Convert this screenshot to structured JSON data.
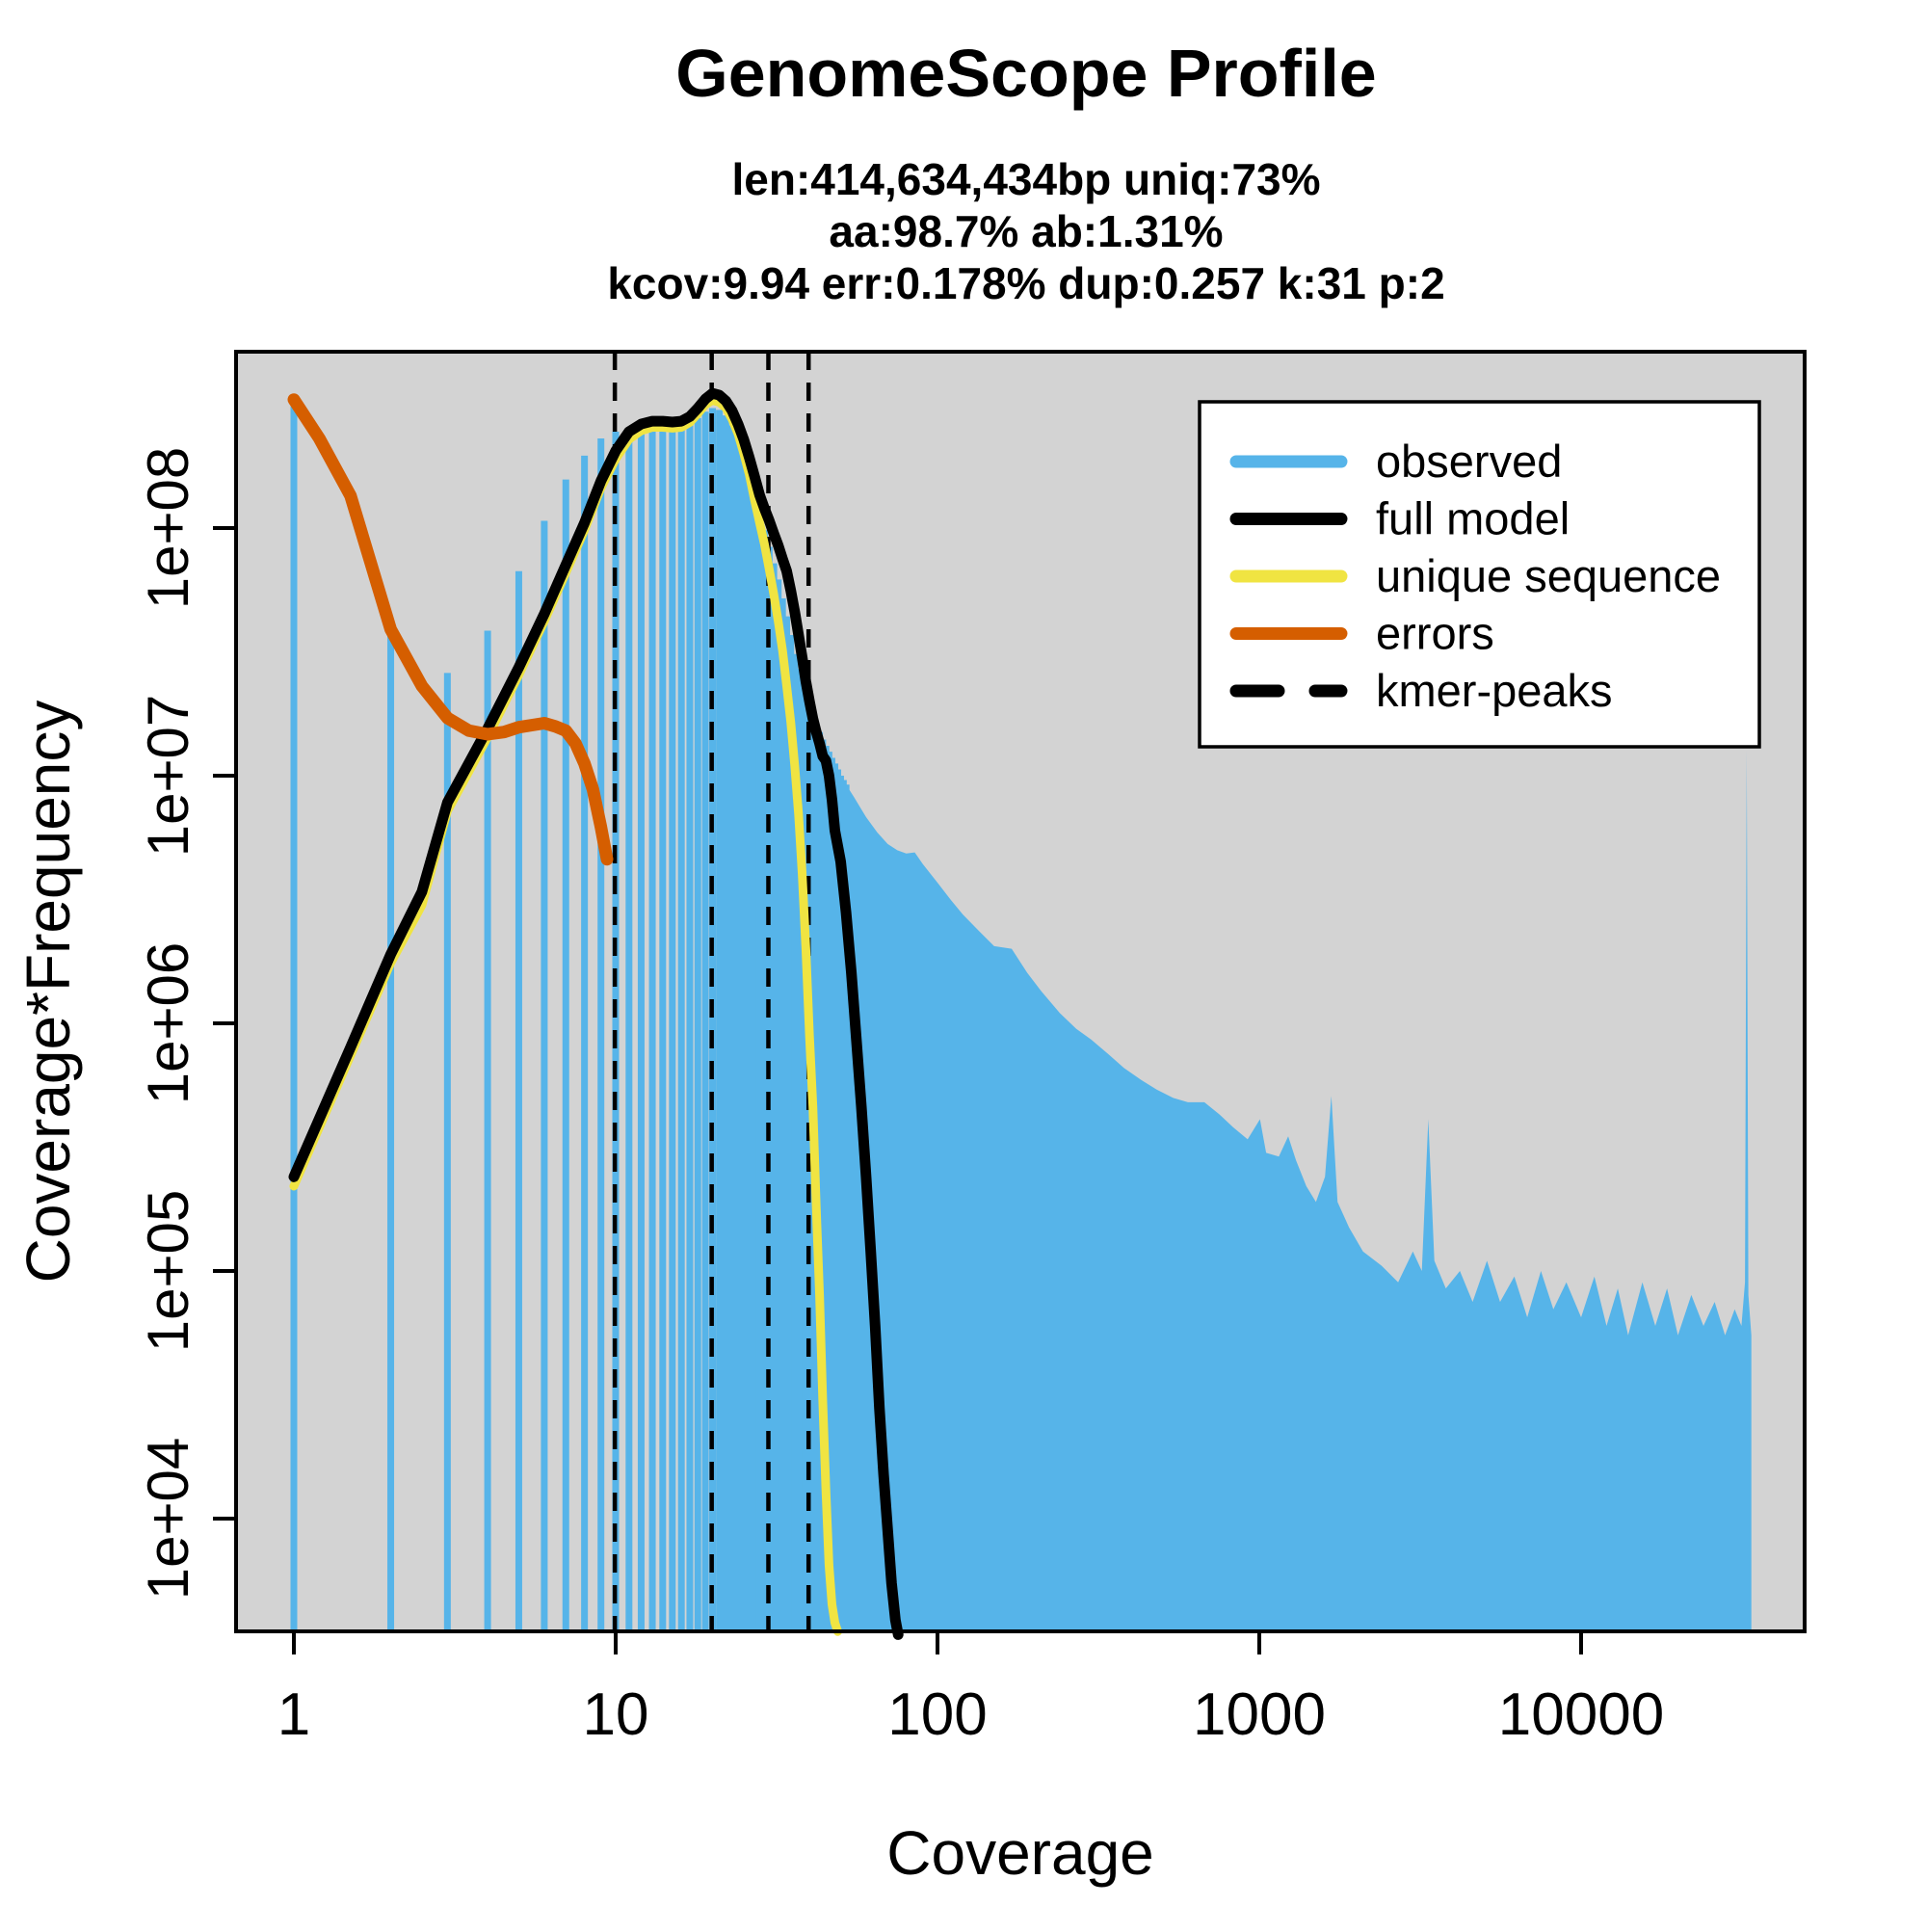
{
  "title": "GenomeScope Profile",
  "subtitle_lines": [
    "len:414,634,434bp uniq:73%",
    "aa:98.7% ab:1.31%",
    "kcov:9.94 err:0.178%  dup:0.257  k:31 p:2"
  ],
  "chart_data": {
    "type": "bar",
    "subtype": "kmer-spectrum-histogram-with-model-curves",
    "title": "GenomeScope Profile",
    "xlabel": "Coverage",
    "ylabel": "Coverage*Frequency",
    "x_scale": "log10",
    "y_scale": "log10",
    "x_ticks": [
      1,
      10,
      100,
      1000,
      10000
    ],
    "y_tick_labels": [
      "1e+04",
      "1e+05",
      "1e+06",
      "1e+07",
      "1e+08"
    ],
    "y_tick_values": [
      10000.0,
      100000.0,
      1000000.0,
      10000000.0,
      100000000.0
    ],
    "xlim": [
      0.66,
      49000
    ],
    "ylim": [
      3500,
      515000000
    ],
    "grid": false,
    "panel_bg": "#D3D3D3",
    "colors": {
      "observed": "#56B4E9",
      "full_model": "#000000",
      "unique_sequence": "#F0E442",
      "errors": "#D55E00",
      "kmer_peaks": "#000000"
    },
    "kmer_peaks": [
      9.94,
      19.88,
      29.82,
      39.76
    ],
    "legend": {
      "position": "top-right",
      "entries": [
        {
          "label": "observed",
          "color": "#56B4E9",
          "dashed": false
        },
        {
          "label": "full model",
          "color": "#000000",
          "dashed": false
        },
        {
          "label": "unique sequence",
          "color": "#F0E442",
          "dashed": false
        },
        {
          "label": "errors",
          "color": "#D55E00",
          "dashed": false
        },
        {
          "label": "kmer-peaks",
          "color": "#000000",
          "dashed": true
        }
      ]
    },
    "series": {
      "observed_bars": [
        [
          1,
          310000000.0
        ],
        [
          2,
          38500000.0
        ],
        [
          3,
          26000000.0
        ],
        [
          4,
          38500000.0
        ],
        [
          5,
          67000000.0
        ],
        [
          6,
          107000000.0
        ],
        [
          7,
          157000000.0
        ],
        [
          8,
          196000000.0
        ],
        [
          9,
          230000000.0
        ],
        [
          10,
          245000000.0
        ],
        [
          11,
          250000000.0
        ],
        [
          12,
          252000000.0
        ],
        [
          13,
          253000000.0
        ],
        [
          14,
          250000000.0
        ],
        [
          15,
          248000000.0
        ],
        [
          16,
          250000000.0
        ],
        [
          17,
          260000000.0
        ],
        [
          18,
          278000000.0
        ],
        [
          19,
          295000000.0
        ],
        [
          20,
          305000000.0
        ],
        [
          21,
          300000000.0
        ],
        [
          22,
          285000000.0
        ],
        [
          23,
          260000000.0
        ],
        [
          24,
          230000000.0
        ],
        [
          25,
          198000000.0
        ],
        [
          26,
          165000000.0
        ],
        [
          27,
          138000000.0
        ],
        [
          28,
          115000000.0
        ],
        [
          29,
          98000000.0
        ],
        [
          30,
          84000000.0
        ],
        [
          31,
          72000000.0
        ],
        [
          32,
          62000000.0
        ],
        [
          33,
          52000000.0
        ],
        [
          34,
          44000000.0
        ],
        [
          35,
          37000000.0
        ],
        [
          36,
          31000000.0
        ],
        [
          37,
          27000000.0
        ],
        [
          38,
          23500000.0
        ],
        [
          39,
          21000000.0
        ],
        [
          40,
          19000000.0
        ],
        [
          41,
          17500000.0
        ],
        [
          42,
          16200000.0
        ],
        [
          43,
          15000000.0
        ],
        [
          44,
          14000000.0
        ],
        [
          45,
          13200000.0
        ],
        [
          46,
          12500000.0
        ],
        [
          47,
          11800000.0
        ],
        [
          48,
          11200000.0
        ],
        [
          49,
          10600000.0
        ],
        [
          50,
          10000000.0
        ],
        [
          51,
          9600000.0
        ],
        [
          52,
          9200000.0
        ]
      ],
      "observed_tail": [
        [
          52,
          9200000.0
        ],
        [
          55,
          8200000.0
        ],
        [
          60,
          6800000.0
        ],
        [
          65,
          5900000.0
        ],
        [
          70,
          5300000.0
        ],
        [
          75,
          5000000.0
        ],
        [
          80,
          4850000.0
        ],
        [
          85,
          4900000.0
        ],
        [
          90,
          4400000.0
        ],
        [
          100,
          3700000.0
        ],
        [
          110,
          3150000.0
        ],
        [
          120,
          2750000.0
        ],
        [
          135,
          2350000.0
        ],
        [
          150,
          2050000.0
        ],
        [
          170,
          2000000.0
        ],
        [
          190,
          1600000.0
        ],
        [
          210,
          1350000.0
        ],
        [
          240,
          1100000.0
        ],
        [
          270,
          950000.0
        ],
        [
          300,
          860000.0
        ],
        [
          340,
          750000.0
        ],
        [
          380,
          660000.0
        ],
        [
          430,
          590000.0
        ],
        [
          480,
          540000.0
        ],
        [
          540,
          500000.0
        ],
        [
          600,
          480000.0
        ],
        [
          675,
          480000.0
        ],
        [
          750,
          430000.0
        ],
        [
          830,
          380000.0
        ],
        [
          920,
          340000.0
        ],
        [
          1005,
          410000.0
        ],
        [
          1050,
          300000.0
        ],
        [
          1150,
          290000.0
        ],
        [
          1230,
          350000.0
        ],
        [
          1300,
          280000.0
        ],
        [
          1400,
          220000.0
        ],
        [
          1500,
          190000.0
        ],
        [
          1600,
          240000.0
        ],
        [
          1675,
          510000.0
        ],
        [
          1750,
          190000.0
        ],
        [
          1900,
          150000.0
        ],
        [
          2100,
          120000.0
        ],
        [
          2400,
          105000.0
        ],
        [
          2700,
          90000.0
        ],
        [
          3000,
          120000.0
        ],
        [
          3200,
          100000.0
        ],
        [
          3350,
          410000.0
        ],
        [
          3500,
          110000.0
        ],
        [
          3800,
          85000.0
        ],
        [
          4200,
          100000.0
        ],
        [
          4600,
          75000.0
        ],
        [
          5100,
          110000.0
        ],
        [
          5600,
          75000.0
        ],
        [
          6200,
          95000.0
        ],
        [
          6800,
          65000.0
        ],
        [
          7500,
          100000.0
        ],
        [
          8200,
          70000.0
        ],
        [
          9000,
          90000.0
        ],
        [
          10000,
          65000.0
        ],
        [
          11000,
          95000.0
        ],
        [
          12000,
          60000.0
        ],
        [
          13000,
          85000.0
        ],
        [
          14000,
          55000.0
        ],
        [
          15500,
          90000.0
        ],
        [
          17000,
          60000.0
        ],
        [
          18500,
          85000.0
        ],
        [
          20000,
          55000.0
        ],
        [
          22000,
          80000.0
        ],
        [
          24000,
          60000.0
        ],
        [
          26000,
          75000.0
        ],
        [
          28000,
          55000.0
        ],
        [
          30000,
          70000.0
        ],
        [
          31500,
          60000.0
        ],
        [
          32300,
          90000.0
        ],
        [
          32700,
          12700000.0
        ],
        [
          33100,
          80000.0
        ],
        [
          33800,
          55000.0
        ]
      ],
      "full_model": [
        [
          1,
          240000.0
        ],
        [
          1.5,
          800000.0
        ],
        [
          2,
          1900000.0
        ],
        [
          2.5,
          3400000.0
        ],
        [
          3,
          7800000.0
        ],
        [
          4,
          15500000.0
        ],
        [
          5,
          27400000.0
        ],
        [
          6,
          45000000.0
        ],
        [
          7,
          71000000.0
        ],
        [
          8,
          105000000.0
        ],
        [
          9,
          155000000.0
        ],
        [
          10,
          205000000.0
        ],
        [
          11,
          245000000.0
        ],
        [
          12,
          263000000.0
        ],
        [
          13,
          270000000.0
        ],
        [
          14,
          270000000.0
        ],
        [
          15,
          268000000.0
        ],
        [
          16,
          270000000.0
        ],
        [
          17,
          282000000.0
        ],
        [
          18,
          305000000.0
        ],
        [
          19,
          332000000.0
        ],
        [
          20,
          350000000.0
        ],
        [
          21,
          344000000.0
        ],
        [
          22,
          326000000.0
        ],
        [
          23,
          298000000.0
        ],
        [
          24,
          263000000.0
        ],
        [
          25,
          228000000.0
        ],
        [
          26,
          193000000.0
        ],
        [
          27,
          162000000.0
        ],
        [
          28,
          136000000.0
        ],
        [
          29,
          120000000.0
        ],
        [
          30,
          107000000.0
        ],
        [
          31,
          95000000.0
        ],
        [
          32,
          85000000.0
        ],
        [
          33,
          75000000.0
        ],
        [
          34,
          67000000.0
        ],
        [
          35,
          56000000.0
        ],
        [
          36,
          46000000.0
        ],
        [
          37,
          37000000.0
        ],
        [
          38,
          30000000.0
        ],
        [
          39,
          24000000.0
        ],
        [
          40,
          20000000.0
        ],
        [
          41,
          17000000.0
        ],
        [
          42,
          15000000.0
        ],
        [
          43,
          13500000.0
        ],
        [
          44,
          12000000.0
        ],
        [
          45,
          11500000.0
        ],
        [
          46,
          10000000.0
        ],
        [
          47,
          8000000.0
        ],
        [
          48,
          6000000.0
        ],
        [
          50,
          4500000.0
        ],
        [
          52,
          2800000.0
        ],
        [
          54,
          1600000.0
        ],
        [
          56,
          850000.0
        ],
        [
          58,
          460000.0
        ],
        [
          60,
          240000.0
        ],
        [
          62,
          120000.0
        ],
        [
          64,
          60000.0
        ],
        [
          66,
          28000.0
        ],
        [
          68,
          15000.0
        ],
        [
          70,
          9000.0
        ],
        [
          72,
          5500.0
        ],
        [
          74,
          3900.0
        ],
        [
          75.5,
          3400.0
        ]
      ],
      "unique_sequence": [
        [
          1,
          220000.0
        ],
        [
          1.5,
          740000.0
        ],
        [
          2,
          1750000.0
        ],
        [
          2.5,
          3000000.0
        ],
        [
          3,
          7200000.0
        ],
        [
          4,
          14300000.0
        ],
        [
          5,
          25500000.0
        ],
        [
          6,
          42000000.0
        ],
        [
          7,
          66000000.0
        ],
        [
          8,
          98000000.0
        ],
        [
          9,
          145000000.0
        ],
        [
          10,
          190000000.0
        ],
        [
          11,
          228000000.0
        ],
        [
          12,
          247000000.0
        ],
        [
          13,
          255000000.0
        ],
        [
          14,
          255000000.0
        ],
        [
          15,
          253000000.0
        ],
        [
          16,
          255000000.0
        ],
        [
          17,
          267000000.0
        ],
        [
          18,
          290000000.0
        ],
        [
          19,
          315000000.0
        ],
        [
          20,
          328000000.0
        ],
        [
          21,
          322000000.0
        ],
        [
          22,
          305000000.0
        ],
        [
          23,
          275000000.0
        ],
        [
          24,
          240000000.0
        ],
        [
          25,
          200000000.0
        ],
        [
          26,
          165000000.0
        ],
        [
          27,
          130000000.0
        ],
        [
          28,
          105000000.0
        ],
        [
          29,
          86000000.0
        ],
        [
          30,
          68000000.0
        ],
        [
          31,
          54000000.0
        ],
        [
          32,
          42000000.0
        ],
        [
          33,
          32000000.0
        ],
        [
          34,
          23000000.0
        ],
        [
          35,
          16500000.0
        ],
        [
          36,
          11000000.0
        ],
        [
          37,
          7000000.0
        ],
        [
          38,
          4000000.0
        ],
        [
          39,
          2000000.0
        ],
        [
          40,
          900000.0
        ],
        [
          41,
          460000.0
        ],
        [
          42,
          180000.0
        ],
        [
          43,
          80000.0
        ],
        [
          44,
          30000.0
        ],
        [
          45,
          13000.0
        ],
        [
          46,
          6500.0
        ],
        [
          47,
          4500.0
        ],
        [
          48,
          3800.0
        ],
        [
          49,
          3500.0
        ]
      ],
      "errors": [
        [
          1,
          330000000.0
        ],
        [
          1.2,
          230000000.0
        ],
        [
          1.5,
          135000000.0
        ],
        [
          2,
          39000000.0
        ],
        [
          2.5,
          23000000.0
        ],
        [
          3,
          17100000.0
        ],
        [
          3.5,
          15200000.0
        ],
        [
          4,
          14700000.0
        ],
        [
          4.5,
          15000000.0
        ],
        [
          5,
          15700000.0
        ],
        [
          5.5,
          16000000.0
        ],
        [
          6,
          16300000.0
        ],
        [
          6.5,
          15800000.0
        ],
        [
          7,
          15200000.0
        ],
        [
          7.5,
          13500000.0
        ],
        [
          8,
          11200000.0
        ],
        [
          8.5,
          8800000.0
        ],
        [
          9,
          6200000.0
        ],
        [
          9.4,
          4600000.0
        ]
      ]
    }
  }
}
